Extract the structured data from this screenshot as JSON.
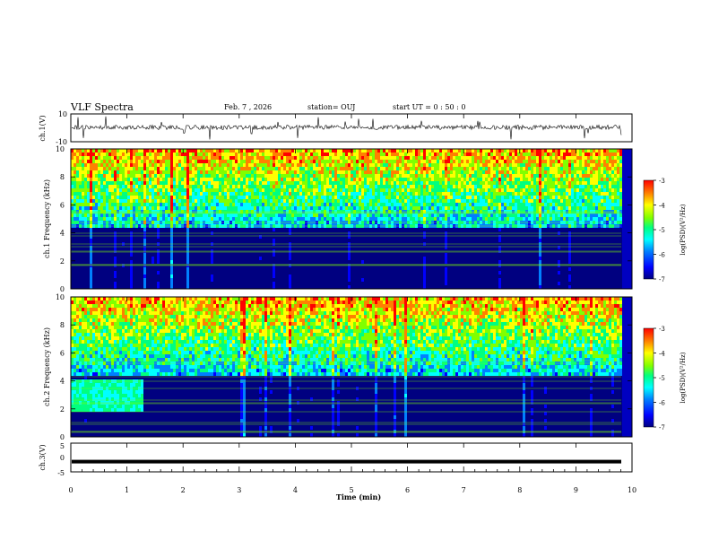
{
  "header": {
    "title": "VLF Spectra",
    "date": "Feb. 7  , 2026",
    "station": "station= OUJ",
    "start": "start  UT =   0  : 50 : 0"
  },
  "chart_data": [
    {
      "type": "line",
      "title": "VLF Spectra",
      "ylabel": "ch.1(V)",
      "ylim": [
        -10,
        10
      ],
      "yticks": [
        "10",
        "-10"
      ],
      "xlim": [
        0,
        10
      ]
    },
    {
      "type": "heatmap",
      "ylabel": "ch.1  Frequency  (kHz)",
      "ylim": [
        0,
        10
      ],
      "yticks": [
        "0",
        "2",
        "4",
        "6",
        "8",
        "10"
      ],
      "xlim": [
        0,
        10
      ],
      "colorbar": {
        "label": "log(PSD)(V²/Hz)",
        "range": [
          -7,
          -3
        ],
        "ticks": [
          "-3",
          "-4",
          "-5",
          "-6",
          "-7"
        ]
      }
    },
    {
      "type": "heatmap",
      "ylabel": "ch.2  Frequency  (kHz)",
      "ylim": [
        0,
        10
      ],
      "yticks": [
        "0",
        "2",
        "4",
        "6",
        "8",
        "10"
      ],
      "xlim": [
        0,
        10
      ],
      "colorbar": {
        "label": "log(PSD)(V²/Hz)",
        "range": [
          -7,
          -3
        ],
        "ticks": [
          "-3",
          "-4",
          "-5",
          "-6",
          "-7"
        ]
      }
    },
    {
      "type": "line",
      "ylabel": "ch.3(V)",
      "ylim": [
        -5,
        5
      ],
      "yticks": [
        "5",
        "0",
        "-5"
      ],
      "xlim": [
        0,
        10
      ],
      "xlabel": "Time  (min)",
      "xticks": [
        "0",
        "1",
        "2",
        "3",
        "4",
        "5",
        "6",
        "7",
        "8",
        "9",
        "10"
      ],
      "level": -0.5
    }
  ],
  "colors": {
    "colormap": [
      "#000080",
      "#0000ff",
      "#0080ff",
      "#00ffff",
      "#00ff80",
      "#80ff00",
      "#ffff00",
      "#ff8000",
      "#ff0000"
    ]
  }
}
